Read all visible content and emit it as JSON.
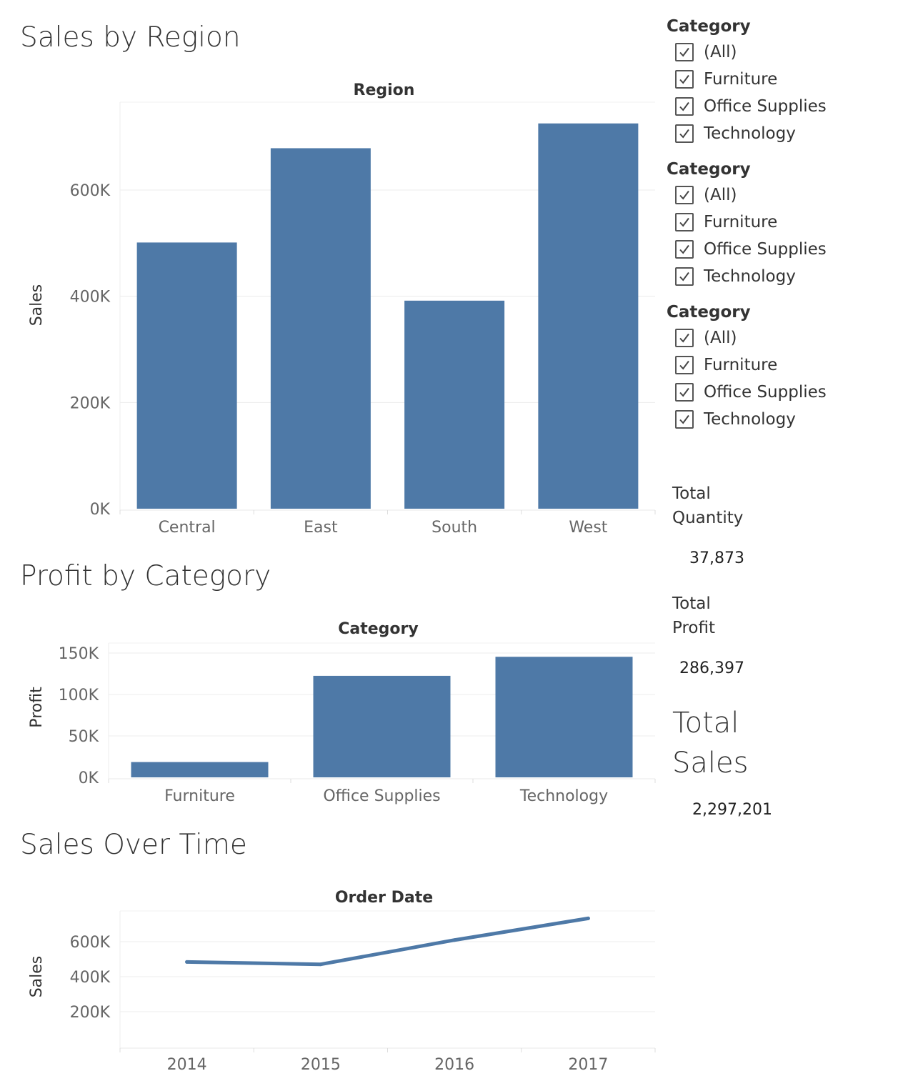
{
  "charts": {
    "sales_by_region": {
      "title": "Sales by Region"
    },
    "profit_by_category": {
      "title": "Profit by Category"
    },
    "sales_over_time": {
      "title": "Sales Over Time"
    }
  },
  "chart_data": [
    {
      "type": "bar",
      "title": "Sales by Region",
      "header": "Region",
      "ylabel": "Sales",
      "categories": [
        "Central",
        "East",
        "South",
        "West"
      ],
      "values": [
        501240,
        678781,
        391722,
        725458
      ],
      "ylim": [
        0,
        760000
      ],
      "yticks": [
        0,
        200000,
        400000,
        600000
      ],
      "ytick_labels": [
        "0K",
        "200K",
        "400K",
        "600K"
      ],
      "color": "#4e79a7",
      "grid": true
    },
    {
      "type": "bar",
      "title": "Profit by Category",
      "header": "Category",
      "ylabel": "Profit",
      "categories": [
        "Furniture",
        "Office Supplies",
        "Technology"
      ],
      "values": [
        18451,
        122491,
        145455
      ],
      "ylim": [
        0,
        160000
      ],
      "yticks": [
        0,
        50000,
        100000,
        150000
      ],
      "ytick_labels": [
        "0K",
        "50K",
        "100K",
        "150K"
      ],
      "color": "#4e79a7",
      "grid": true
    },
    {
      "type": "line",
      "title": "Sales Over Time",
      "header": "Order Date",
      "ylabel": "Sales",
      "categories": [
        "2014",
        "2015",
        "2016",
        "2017"
      ],
      "values": [
        484247,
        470533,
        609206,
        733215
      ],
      "ylim": [
        0,
        800000
      ],
      "yticks": [
        200000,
        400000,
        600000
      ],
      "ytick_labels": [
        "200K",
        "400K",
        "600K"
      ],
      "color": "#4e79a7",
      "grid": true
    }
  ],
  "filters": [
    {
      "title": "Category",
      "items": [
        {
          "label": "(All)",
          "checked": true
        },
        {
          "label": "Furniture",
          "checked": true
        },
        {
          "label": "Office Supplies",
          "checked": true
        },
        {
          "label": "Technology",
          "checked": true
        }
      ]
    },
    {
      "title": "Category",
      "items": [
        {
          "label": "(All)",
          "checked": true
        },
        {
          "label": "Furniture",
          "checked": true
        },
        {
          "label": "Office Supplies",
          "checked": true
        },
        {
          "label": "Technology",
          "checked": true
        }
      ]
    },
    {
      "title": "Category",
      "items": [
        {
          "label": "(All)",
          "checked": true
        },
        {
          "label": "Furniture",
          "checked": true
        },
        {
          "label": "Office Supplies",
          "checked": true
        },
        {
          "label": "Technology",
          "checked": true
        }
      ]
    }
  ],
  "kpis": {
    "quantity": {
      "label_line1": "Total",
      "label_line2": "Quantity",
      "value": "37,873"
    },
    "profit": {
      "label_line1": "Total",
      "label_line2": "Profit",
      "value": "286,397"
    },
    "sales": {
      "label_line1": "Total",
      "label_line2": "Sales",
      "value": "2,297,201"
    }
  }
}
